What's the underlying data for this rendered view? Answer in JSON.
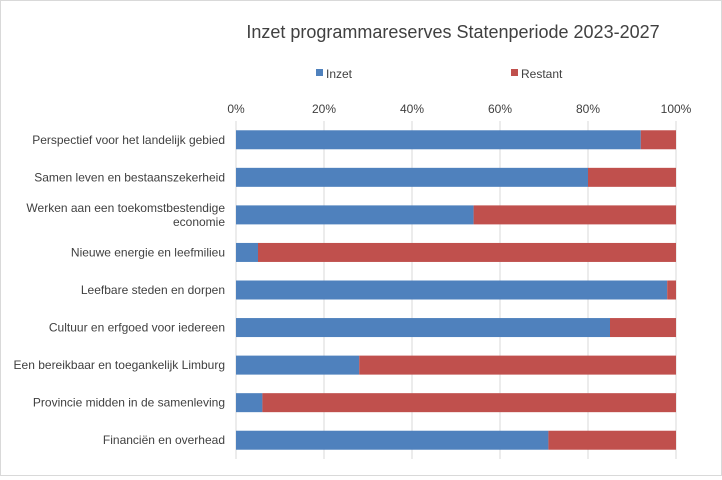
{
  "chart_data": {
    "type": "bar",
    "orientation": "horizontal",
    "stacking": "percent",
    "title": "Inzet programmareserves Statenperiode 2023-2027",
    "xlim": [
      0,
      100
    ],
    "x_ticks": [
      "0%",
      "20%",
      "40%",
      "60%",
      "80%",
      "100%"
    ],
    "x_axis_position": "top",
    "grid": true,
    "legend_position": "top",
    "categories": [
      [
        "Perspectief voor het landelijk gebied"
      ],
      [
        "Samen leven en bestaanszekerheid"
      ],
      [
        "Werken aan een toekomstbestendige",
        "economie"
      ],
      [
        "Nieuwe energie en leefmilieu"
      ],
      [
        "Leefbare steden en dorpen"
      ],
      [
        "Cultuur en erfgoed voor iedereen"
      ],
      [
        "Een bereikbaar en toegankelijk Limburg"
      ],
      [
        "Provincie midden in de samenleving"
      ],
      [
        "Financiën en overhead"
      ]
    ],
    "series": [
      {
        "name": "Inzet",
        "color": "#4f81bd",
        "values": [
          92,
          80,
          54,
          5,
          98,
          85,
          28,
          6,
          71
        ]
      },
      {
        "name": "Restant",
        "color": "#c0504d",
        "values": [
          8,
          20,
          46,
          95,
          2,
          15,
          72,
          94,
          29
        ]
      }
    ]
  }
}
